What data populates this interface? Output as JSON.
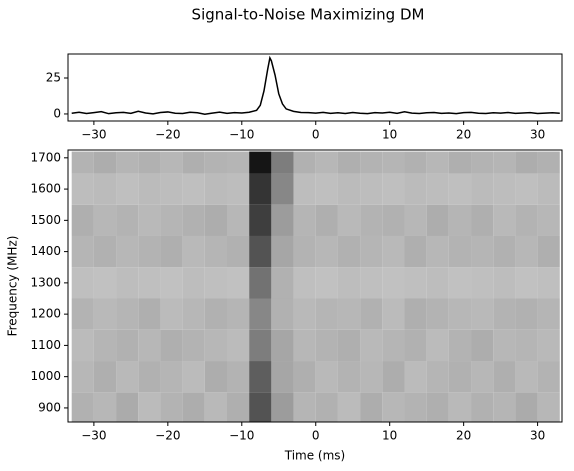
{
  "title": "Signal-to-Noise Maximizing DM",
  "chart_data": [
    {
      "type": "line",
      "color": "#000000",
      "x": [
        -33,
        -32,
        -31,
        -30,
        -29,
        -28,
        -27,
        -26,
        -25,
        -24,
        -23,
        -22,
        -21,
        -20,
        -19,
        -18,
        -17,
        -16,
        -15,
        -14,
        -13,
        -12,
        -11,
        -10,
        -9,
        -8,
        -7.5,
        -7,
        -6.5,
        -6.2,
        -6,
        -5.5,
        -5,
        -4.5,
        -4,
        -3,
        -2,
        -1,
        0,
        1,
        2,
        3,
        4,
        5,
        6,
        7,
        8,
        9,
        10,
        11,
        12,
        13,
        14,
        15,
        16,
        17,
        18,
        19,
        20,
        21,
        22,
        23,
        24,
        25,
        26,
        27,
        28,
        29,
        30,
        31,
        32,
        33
      ],
      "values": [
        0.5,
        1.2,
        0.3,
        0.9,
        1.6,
        0.2,
        0.8,
        1.1,
        0.4,
        1.9,
        0.7,
        0.1,
        1.0,
        1.4,
        0.5,
        0.3,
        1.2,
        0.8,
        -0.2,
        0.6,
        1.3,
        0.4,
        0.9,
        0.7,
        1.2,
        2.5,
        6,
        16,
        31,
        39,
        37,
        27,
        14,
        7,
        3.5,
        1.8,
        1.0,
        0.9,
        0.6,
        1.1,
        0.4,
        0.8,
        0.3,
        1.0,
        0.5,
        0.2,
        0.9,
        0.7,
        1.2,
        0.4,
        1.5,
        0.6,
        0.3,
        0.8,
        1.0,
        0.4,
        0.7,
        0.2,
        0.9,
        1.1,
        0.5,
        0.3,
        0.8,
        0.6,
        1.0,
        0.4,
        0.7,
        0.9,
        0.3,
        0.6,
        0.8,
        0.5
      ],
      "xlim": [
        -33.5,
        33.3
      ],
      "ylim": [
        -4.9,
        41.7
      ],
      "xticks": [
        {
          "value": -30,
          "label": "−30"
        },
        {
          "value": -20,
          "label": "−20"
        },
        {
          "value": -10,
          "label": "−10"
        },
        0,
        10,
        20,
        30
      ],
      "yticks": [
        0,
        25
      ]
    },
    {
      "type": "heatmap",
      "xlabel": "Time (ms)",
      "ylabel": "Frequency (MHz)",
      "x_edges": [
        -33,
        -30,
        -27,
        -24,
        -21,
        -18,
        -15,
        -12,
        -9,
        -6,
        -3,
        0,
        3,
        6,
        9,
        12,
        15,
        18,
        21,
        24,
        27,
        30,
        33
      ],
      "y_edges": [
        855,
        950,
        1050,
        1150,
        1250,
        1350,
        1450,
        1550,
        1650,
        1720
      ],
      "values": [
        [
          0.15,
          0.12,
          0.18,
          0.1,
          0.14,
          0.17,
          0.11,
          0.16,
          0.6,
          0.25,
          0.13,
          0.15,
          0.1,
          0.17,
          0.12,
          0.14,
          0.16,
          0.11,
          0.15,
          0.13,
          0.18,
          0.12
        ],
        [
          0.12,
          0.16,
          0.11,
          0.15,
          0.13,
          0.1,
          0.17,
          0.14,
          0.55,
          0.2,
          0.16,
          0.11,
          0.14,
          0.12,
          0.17,
          0.1,
          0.13,
          0.15,
          0.12,
          0.16,
          0.11,
          0.14
        ],
        [
          0.1,
          0.13,
          0.15,
          0.12,
          0.16,
          0.14,
          0.12,
          0.1,
          0.4,
          0.2,
          0.12,
          0.14,
          0.16,
          0.11,
          0.13,
          0.15,
          0.1,
          0.14,
          0.17,
          0.12,
          0.13,
          0.11
        ],
        [
          0.14,
          0.11,
          0.13,
          0.16,
          0.1,
          0.12,
          0.15,
          0.13,
          0.35,
          0.15,
          0.11,
          0.13,
          0.12,
          0.15,
          0.1,
          0.16,
          0.14,
          0.12,
          0.11,
          0.14,
          0.15,
          0.13
        ],
        [
          0.08,
          0.07,
          0.09,
          0.08,
          0.07,
          0.09,
          0.08,
          0.07,
          0.45,
          0.15,
          0.08,
          0.07,
          0.09,
          0.08,
          0.07,
          0.08,
          0.09,
          0.07,
          0.08,
          0.09,
          0.07,
          0.08
        ],
        [
          0.13,
          0.15,
          0.12,
          0.14,
          0.16,
          0.11,
          0.13,
          0.15,
          0.6,
          0.2,
          0.14,
          0.12,
          0.15,
          0.13,
          0.11,
          0.16,
          0.12,
          0.14,
          0.13,
          0.15,
          0.12,
          0.16
        ],
        [
          0.16,
          0.12,
          0.14,
          0.11,
          0.13,
          0.15,
          0.17,
          0.12,
          0.7,
          0.25,
          0.13,
          0.16,
          0.11,
          0.14,
          0.15,
          0.12,
          0.17,
          0.13,
          0.16,
          0.11,
          0.14,
          0.12
        ],
        [
          0.09,
          0.1,
          0.08,
          0.1,
          0.09,
          0.08,
          0.1,
          0.09,
          0.75,
          0.35,
          0.09,
          0.08,
          0.1,
          0.09,
          0.08,
          0.1,
          0.09,
          0.08,
          0.1,
          0.09,
          0.08,
          0.1
        ],
        [
          0.14,
          0.17,
          0.13,
          0.15,
          0.12,
          0.16,
          0.14,
          0.13,
          0.9,
          0.4,
          0.15,
          0.12,
          0.16,
          0.14,
          0.13,
          0.15,
          0.12,
          0.16,
          0.14,
          0.13,
          0.17,
          0.15
        ]
      ],
      "xlim": [
        -33.5,
        33.3
      ],
      "ylim": [
        855,
        1725
      ],
      "xticks": [
        {
          "value": -30,
          "label": "−30"
        },
        {
          "value": -20,
          "label": "−20"
        },
        {
          "value": -10,
          "label": "−10"
        },
        0,
        10,
        20,
        30
      ],
      "yticks": [
        900,
        1000,
        1100,
        1200,
        1300,
        1400,
        1500,
        1600,
        1700
      ]
    }
  ]
}
